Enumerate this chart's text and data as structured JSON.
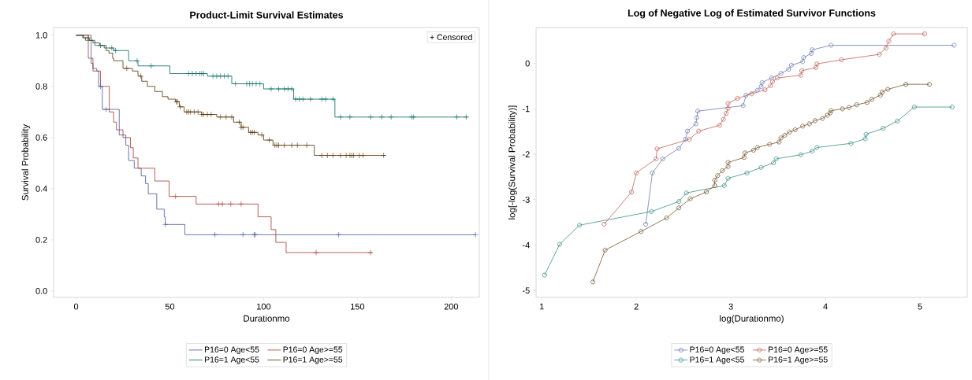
{
  "chart_data": [
    {
      "type": "step",
      "title": "Product-Limit Survival Estimates",
      "xlabel": "Durationmo",
      "ylabel": "Survival Probability",
      "xlim": [
        -12,
        215
      ],
      "ylim": [
        -0.025,
        1.03
      ],
      "xticks": [
        0,
        50,
        100,
        150,
        200
      ],
      "yticks": [
        {
          "value": 0,
          "label": "0.0"
        },
        {
          "value": 0.2,
          "label": "0.2"
        },
        {
          "value": 0.4,
          "label": "0.4"
        },
        {
          "value": 0.6,
          "label": "0.6"
        },
        {
          "value": 0.8,
          "label": "0.8"
        },
        {
          "value": 1,
          "label": "1.0"
        }
      ],
      "legend": "bottom",
      "annotations": [
        "+ Censored"
      ],
      "series": [
        {
          "name": "P16=0 Age<55",
          "color": "#445694",
          "x": [
            0,
            8,
            9,
            11,
            12,
            14,
            23,
            26.5,
            28,
            31,
            34.7,
            37,
            38.5,
            43,
            47,
            47.5,
            58,
            213
          ],
          "values": [
            1.0,
            0.89,
            0.87,
            0.86,
            0.8,
            0.71,
            0.61,
            0.57,
            0.51,
            0.48,
            0.45,
            0.42,
            0.38,
            0.32,
            0.29,
            0.26,
            0.22,
            0.22
          ]
        },
        {
          "name": "P16=0 Age>=55",
          "color": "#a23a2e",
          "x": [
            0,
            6.5,
            9,
            13,
            17.7,
            20,
            21.5,
            25,
            29,
            30.5,
            33,
            42,
            49.6,
            64,
            97,
            104,
            106.5,
            112,
            158
          ],
          "values": [
            1.0,
            0.91,
            0.86,
            0.8,
            0.7,
            0.66,
            0.63,
            0.6,
            0.56,
            0.52,
            0.48,
            0.43,
            0.37,
            0.34,
            0.29,
            0.24,
            0.19,
            0.15,
            0.15
          ]
        },
        {
          "name": "P16=1 Age<55",
          "color": "#01665e",
          "x": [
            0,
            3.5,
            5,
            10,
            15,
            20,
            28,
            33,
            50,
            70,
            83,
            100,
            116,
            138,
            209
          ],
          "values": [
            1.0,
            0.99,
            0.98,
            0.96,
            0.95,
            0.94,
            0.9,
            0.88,
            0.85,
            0.84,
            0.81,
            0.79,
            0.75,
            0.68,
            0.68
          ]
        },
        {
          "name": "P16=1 Age>=55",
          "color": "#543005",
          "x": [
            0,
            4,
            7,
            9,
            12.5,
            16,
            17.5,
            19.5,
            20,
            25,
            30,
            33,
            35,
            38,
            42,
            46,
            49,
            53,
            55,
            57.6,
            67,
            75,
            84,
            88,
            92,
            97,
            100,
            105,
            127,
            165
          ],
          "values": [
            1.0,
            0.99,
            0.98,
            0.97,
            0.96,
            0.94,
            0.93,
            0.91,
            0.9,
            0.87,
            0.86,
            0.84,
            0.82,
            0.8,
            0.78,
            0.76,
            0.75,
            0.74,
            0.72,
            0.7,
            0.69,
            0.68,
            0.66,
            0.64,
            0.62,
            0.61,
            0.59,
            0.57,
            0.53,
            0.53
          ]
        },
        {
          "type": "scatter",
          "marker": "cross",
          "color": "#445694",
          "x": [
            13,
            16,
            47.5,
            74,
            89,
            95,
            95.5,
            140,
            213
          ],
          "values": [
            0.8,
            0.71,
            0.26,
            0.22,
            0.22,
            0.22,
            0.22,
            0.22,
            0.22
          ]
        },
        {
          "type": "scatter",
          "marker": "cross",
          "color": "#a23a2e",
          "x": [
            53,
            76,
            78,
            82.5,
            88,
            128,
            157
          ],
          "values": [
            0.37,
            0.34,
            0.34,
            0.34,
            0.34,
            0.15,
            0.15
          ]
        },
        {
          "type": "scatter",
          "marker": "cross",
          "color": "#01665e",
          "x": [
            13,
            19,
            21,
            32.5,
            40,
            60,
            62,
            64,
            66,
            67,
            68,
            73,
            75,
            77,
            79,
            81,
            85,
            91,
            92.5,
            94,
            96,
            98,
            104,
            108,
            111,
            113,
            115,
            117,
            119,
            121,
            125,
            131,
            133,
            137,
            141,
            146,
            157,
            163,
            168,
            179,
            180,
            203,
            208
          ],
          "values": [
            0.96,
            0.95,
            0.94,
            0.9,
            0.88,
            0.85,
            0.85,
            0.85,
            0.85,
            0.85,
            0.85,
            0.84,
            0.84,
            0.84,
            0.84,
            0.84,
            0.81,
            0.81,
            0.81,
            0.81,
            0.81,
            0.81,
            0.79,
            0.79,
            0.79,
            0.79,
            0.79,
            0.75,
            0.75,
            0.75,
            0.75,
            0.75,
            0.75,
            0.75,
            0.68,
            0.68,
            0.68,
            0.68,
            0.68,
            0.68,
            0.68,
            0.68,
            0.68
          ]
        },
        {
          "type": "scatter",
          "marker": "cross",
          "color": "#543005",
          "x": [
            6.5,
            27,
            34.5,
            53.5,
            54,
            55.5,
            59,
            60,
            61,
            63,
            65,
            67,
            68,
            70,
            72,
            77,
            80,
            83,
            87,
            88,
            89,
            93,
            94,
            95,
            99,
            103,
            106,
            107,
            108,
            111,
            115,
            118,
            123,
            131,
            134,
            137,
            141,
            144,
            146,
            147,
            148,
            151,
            153,
            164
          ],
          "values": [
            0.99,
            0.87,
            0.84,
            0.74,
            0.74,
            0.72,
            0.7,
            0.7,
            0.7,
            0.7,
            0.7,
            0.69,
            0.69,
            0.69,
            0.69,
            0.68,
            0.68,
            0.68,
            0.66,
            0.64,
            0.64,
            0.62,
            0.62,
            0.62,
            0.61,
            0.59,
            0.57,
            0.57,
            0.57,
            0.57,
            0.57,
            0.57,
            0.57,
            0.53,
            0.53,
            0.53,
            0.53,
            0.53,
            0.53,
            0.53,
            0.53,
            0.53,
            0.53,
            0.53
          ]
        }
      ]
    },
    {
      "type": "line",
      "title": "Log of Negative Log of Estimated Survivor Functions",
      "xlabel": "log(Durationmo)",
      "ylabel": "log[-log(Survival Probability)]",
      "xlim": [
        0.94,
        5.5
      ],
      "ylim": [
        -5.15,
        0.79
      ],
      "xticks": [
        1,
        2,
        3,
        4,
        5
      ],
      "yticks": [
        -5,
        -4,
        -3,
        -2,
        -1,
        0
      ],
      "legend": "bottom",
      "marker": "circle",
      "series": [
        {
          "name": "P16=0 Age<55",
          "color": "#6d7cb3",
          "x": [
            2.1,
            2.17,
            2.28,
            2.45,
            2.52,
            2.54,
            2.63,
            2.64,
            2.65,
            3.13,
            3.16,
            3.28,
            3.32,
            3.33,
            3.43,
            3.53,
            3.61,
            3.64,
            3.76,
            3.77,
            3.85,
            3.86,
            4.06,
            5.36
          ],
          "values": [
            -3.54,
            -2.41,
            -2.1,
            -1.87,
            -1.67,
            -1.49,
            -1.33,
            -1.19,
            -1.05,
            -0.93,
            -0.7,
            -0.59,
            -0.51,
            -0.42,
            -0.32,
            -0.22,
            -0.13,
            -0.04,
            0.04,
            0.13,
            0.22,
            0.3,
            0.4,
            0.4
          ]
        },
        {
          "name": "P16=0 Age>=55",
          "color": "#bf6258",
          "x": [
            1.66,
            1.95,
            2.0,
            2.21,
            2.22,
            2.56,
            2.66,
            2.88,
            2.92,
            2.95,
            2.97,
            2.97,
            3.07,
            3.22,
            3.36,
            3.42,
            3.44,
            3.49,
            3.74,
            3.75,
            3.9,
            3.91,
            4.17,
            4.57,
            4.64,
            4.67,
            4.72,
            5.05
          ],
          "values": [
            -3.54,
            -2.83,
            -2.41,
            -2.1,
            -1.88,
            -1.67,
            -1.49,
            -1.36,
            -1.23,
            -1.1,
            -0.99,
            -0.88,
            -0.77,
            -0.67,
            -0.58,
            -0.49,
            -0.4,
            -0.32,
            -0.26,
            -0.16,
            -0.09,
            -0.01,
            0.08,
            0.2,
            0.34,
            0.49,
            0.65,
            0.65
          ]
        },
        {
          "name": "P16=1 Age<55",
          "color": "#3a8f86",
          "x": [
            1.03,
            1.19,
            1.4,
            2.16,
            2.45,
            2.53,
            2.93,
            2.97,
            3.17,
            3.32,
            3.45,
            3.48,
            3.74,
            3.86,
            3.91,
            4.27,
            4.42,
            4.43,
            4.61,
            4.76,
            4.94,
            5.34
          ],
          "values": [
            -4.66,
            -3.98,
            -3.56,
            -3.26,
            -3.04,
            -2.85,
            -2.69,
            -2.53,
            -2.41,
            -2.29,
            -2.19,
            -2.1,
            -2.01,
            -1.93,
            -1.85,
            -1.76,
            -1.66,
            -1.56,
            -1.43,
            -1.27,
            -0.96,
            -0.96
          ]
        },
        {
          "name": "P16=1 Age>=55",
          "color": "#765530",
          "x": [
            1.54,
            1.67,
            2.05,
            2.32,
            2.45,
            2.57,
            2.74,
            2.83,
            2.83,
            2.86,
            2.91,
            2.97,
            2.97,
            3.14,
            3.15,
            3.24,
            3.28,
            3.41,
            3.51,
            3.53,
            3.57,
            3.62,
            3.68,
            3.76,
            3.83,
            3.89,
            3.97,
            4.02,
            4.05,
            4.06,
            4.18,
            4.25,
            4.33,
            4.44,
            4.49,
            4.58,
            4.6,
            4.66,
            4.85,
            5.1
          ],
          "values": [
            -4.81,
            -4.11,
            -3.7,
            -3.4,
            -3.18,
            -2.98,
            -2.83,
            -2.69,
            -2.57,
            -2.47,
            -2.36,
            -2.27,
            -2.18,
            -2.07,
            -1.97,
            -1.91,
            -1.85,
            -1.78,
            -1.73,
            -1.64,
            -1.58,
            -1.51,
            -1.46,
            -1.38,
            -1.33,
            -1.26,
            -1.21,
            -1.14,
            -1.09,
            -1.04,
            -1.0,
            -0.97,
            -0.91,
            -0.86,
            -0.79,
            -0.7,
            -0.63,
            -0.57,
            -0.46,
            -0.46
          ]
        }
      ]
    }
  ]
}
